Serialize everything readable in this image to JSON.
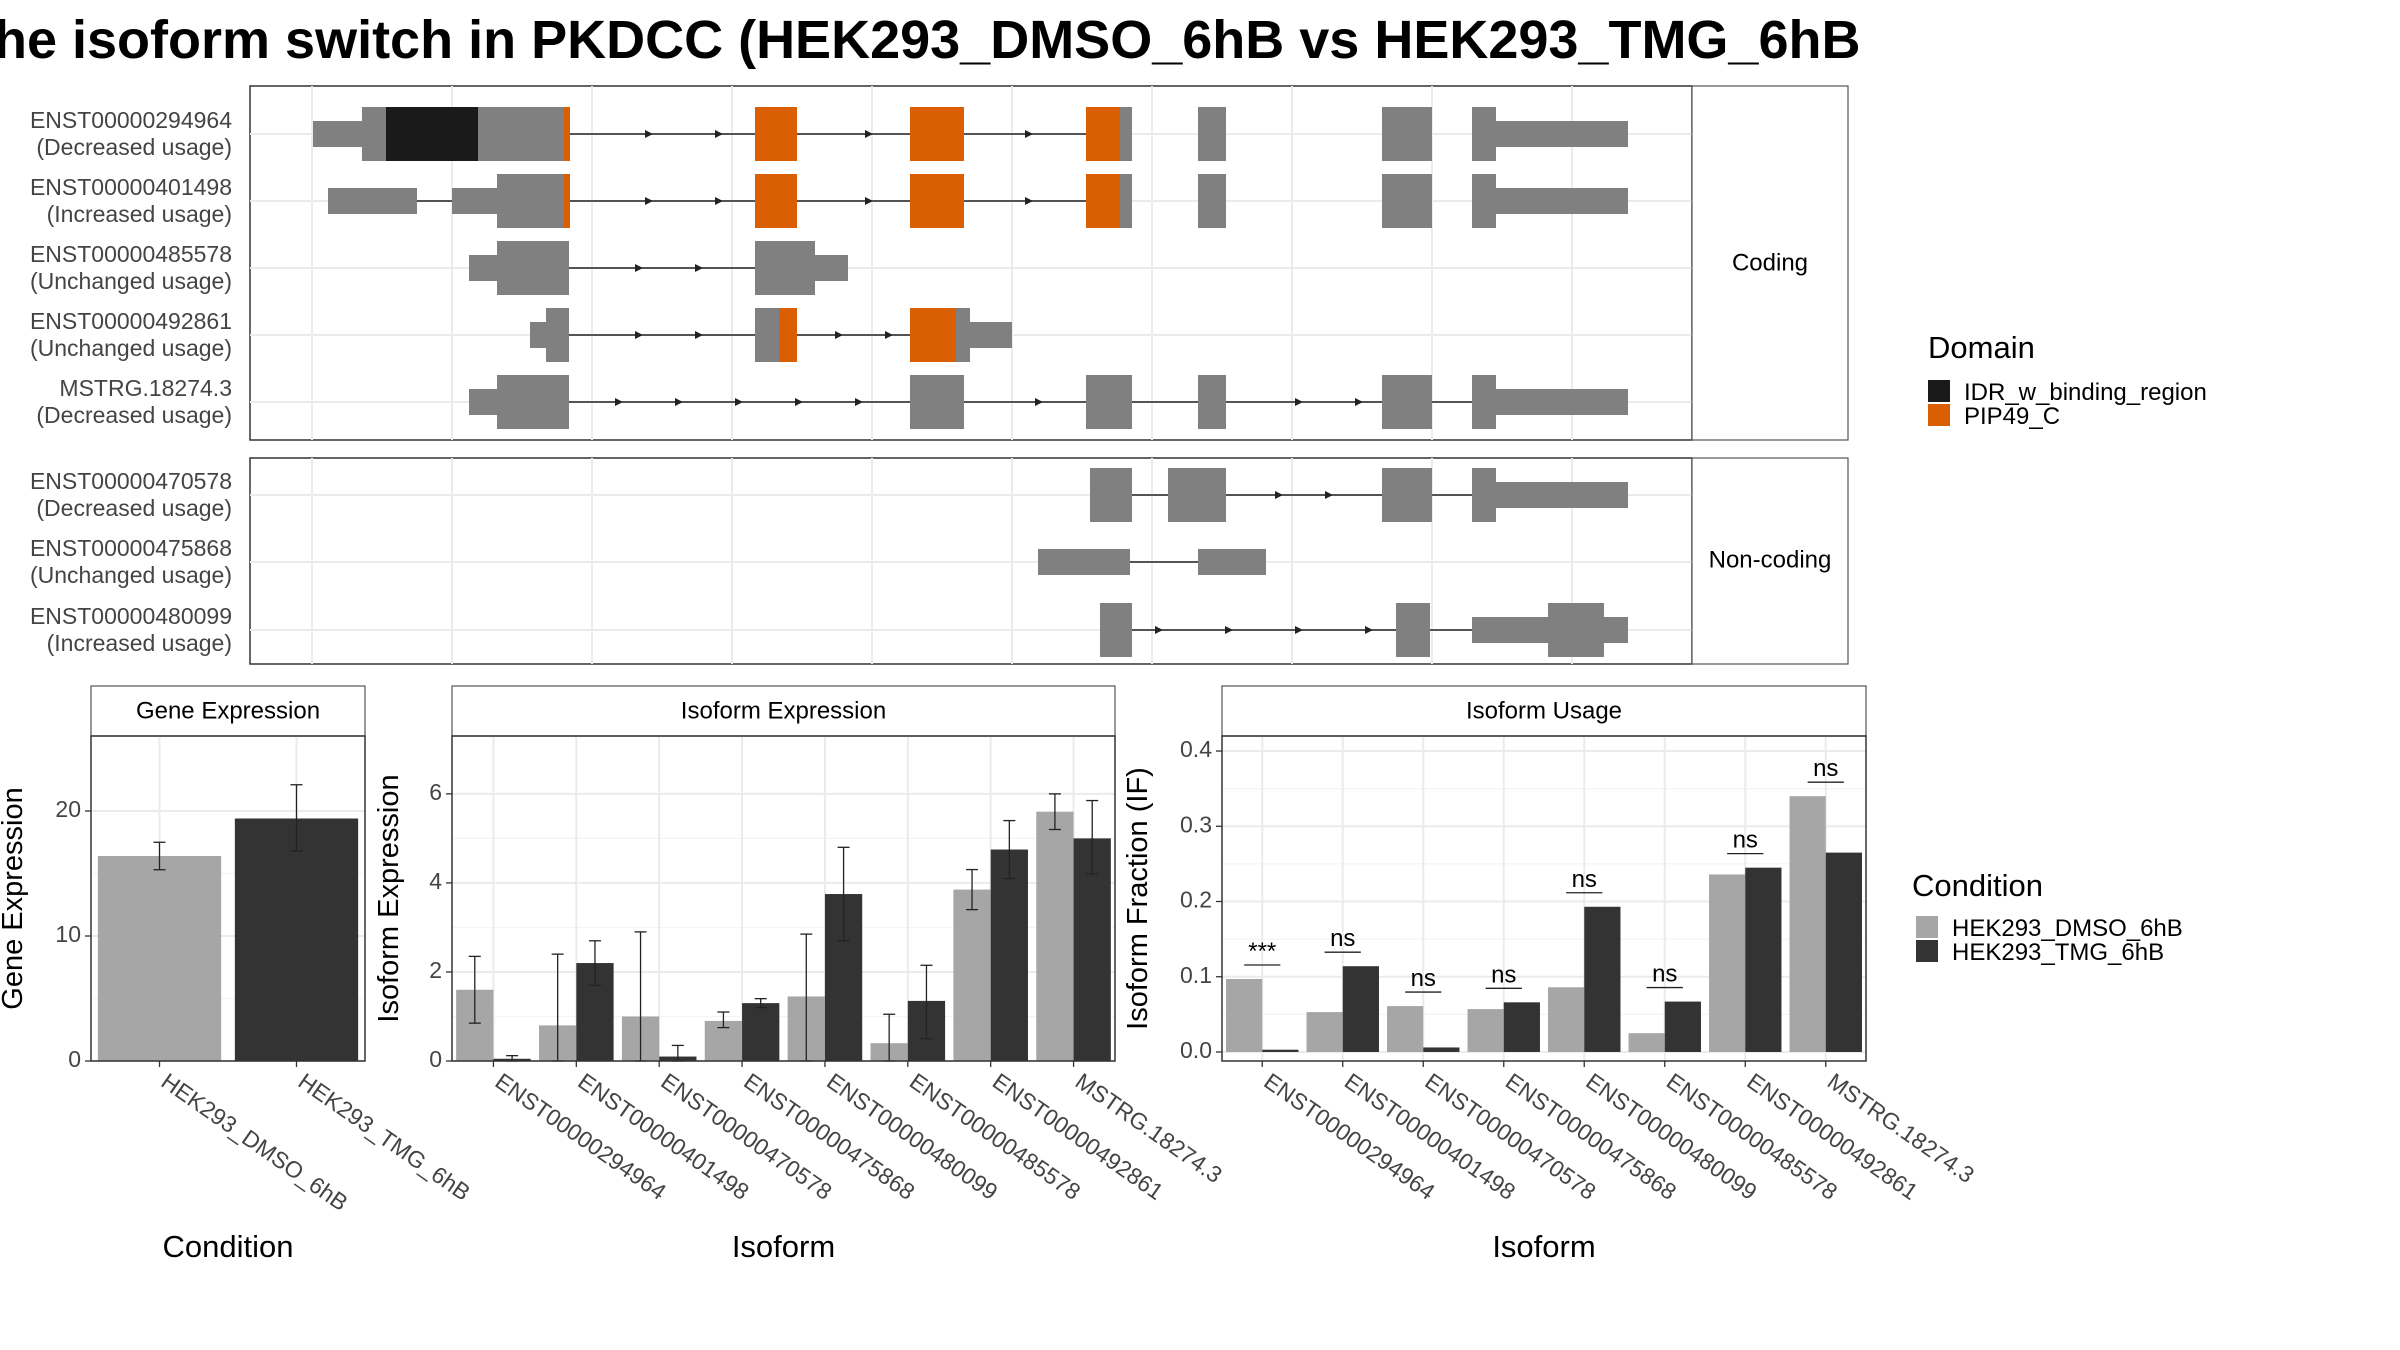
{
  "title": "he isoform switch in PKDCC (HEK293_DMSO_6hB vs HEK293_TMG_6hB",
  "colors": {
    "gene_model": "#808080",
    "IDR_w_binding_region": "#1a1a1a",
    "PIP49_C": "#d95f02",
    "DMSO": "#a6a6a6",
    "TMG": "#333333"
  },
  "legends": {
    "domain": {
      "title": "Domain",
      "items": [
        {
          "label": "IDR_w_binding_region",
          "color": "#1a1a1a"
        },
        {
          "label": "PIP49_C",
          "color": "#d95f02"
        }
      ]
    },
    "condition": {
      "title": "Condition",
      "items": [
        {
          "label": "HEK293_DMSO_6hB",
          "color": "#a6a6a6"
        },
        {
          "label": "HEK293_TMG_6hB",
          "color": "#333333"
        }
      ]
    }
  },
  "structure": {
    "coding_strip": "Coding",
    "noncoding_strip": "Non-coding",
    "coding": [
      {
        "id": "ENST00000294964",
        "usage": "(Decreased usage)"
      },
      {
        "id": "ENST00000401498",
        "usage": "(Increased usage)"
      },
      {
        "id": "ENST00000485578",
        "usage": "(Unchanged usage)"
      },
      {
        "id": "ENST00000492861",
        "usage": "(Unchanged usage)"
      },
      {
        "id": "MSTRG.18274.3",
        "usage": "(Decreased usage)"
      }
    ],
    "noncoding": [
      {
        "id": "ENST00000470578",
        "usage": "(Decreased usage)"
      },
      {
        "id": "ENST00000475868",
        "usage": "(Unchanged usage)"
      },
      {
        "id": "ENST00000480099",
        "usage": "(Increased usage)"
      }
    ]
  },
  "chart_data": [
    {
      "type": "bar",
      "title": "Gene Expression",
      "xlabel": "Condition",
      "ylabel": "Gene Expression",
      "categories": [
        "HEK293_DMSO_6hB",
        "HEK293_TMG_6hB"
      ],
      "values": [
        16.4,
        19.4
      ],
      "errors": [
        [
          15.3,
          17.5
        ],
        [
          16.8,
          22.1
        ]
      ],
      "ylim": [
        0,
        26
      ],
      "yticks": [
        0,
        10,
        20
      ],
      "grid": true
    },
    {
      "type": "bar",
      "title": "Isoform Expression",
      "xlabel": "Isoform",
      "ylabel": "Isoform Expression",
      "categories": [
        "ENST00000294964",
        "ENST00000401498",
        "ENST00000470578",
        "ENST00000475868",
        "ENST00000480099",
        "ENST00000485578",
        "ENST00000492861",
        "MSTRG.18274.3"
      ],
      "series": [
        {
          "name": "HEK293_DMSO_6hB",
          "values": [
            1.6,
            0.8,
            1.0,
            0.9,
            1.45,
            0.4,
            3.85,
            5.6
          ],
          "errors": [
            [
              0.85,
              2.35
            ],
            [
              0.0,
              2.4
            ],
            [
              0.0,
              2.9
            ],
            [
              0.75,
              1.1
            ],
            [
              0.0,
              2.85
            ],
            [
              0.0,
              1.05
            ],
            [
              3.4,
              4.3
            ],
            [
              5.2,
              6.0
            ]
          ]
        },
        {
          "name": "HEK293_TMG_6hB",
          "values": [
            0.05,
            2.2,
            0.1,
            1.3,
            3.75,
            1.35,
            4.75,
            5.0
          ],
          "errors": [
            [
              0.0,
              0.12
            ],
            [
              1.7,
              2.7
            ],
            [
              0.0,
              0.35
            ],
            [
              1.2,
              1.4
            ],
            [
              2.7,
              4.8
            ],
            [
              0.5,
              2.15
            ],
            [
              4.1,
              5.4
            ],
            [
              4.2,
              5.85
            ]
          ]
        }
      ],
      "ylim": [
        0,
        7.3
      ],
      "yticks": [
        0,
        2,
        4,
        6
      ],
      "grid": true
    },
    {
      "type": "bar",
      "title": "Isoform Usage",
      "xlabel": "Isoform",
      "ylabel": "Isoform Fraction (IF)",
      "categories": [
        "ENST00000294964",
        "ENST00000401498",
        "ENST00000470578",
        "ENST00000475868",
        "ENST00000480099",
        "ENST00000485578",
        "ENST00000492861",
        "MSTRG.18274.3"
      ],
      "series": [
        {
          "name": "HEK293_DMSO_6hB",
          "values": [
            0.097,
            0.053,
            0.061,
            0.057,
            0.086,
            0.025,
            0.236,
            0.34
          ]
        },
        {
          "name": "HEK293_TMG_6hB",
          "values": [
            0.003,
            0.114,
            0.006,
            0.066,
            0.193,
            0.067,
            0.245,
            0.265
          ]
        }
      ],
      "annotations": [
        "***",
        "ns",
        "ns",
        "ns",
        "ns",
        "ns",
        "ns",
        "ns"
      ],
      "ylim": [
        -0.012,
        0.42
      ],
      "yticks": [
        0.0,
        0.1,
        0.2,
        0.3,
        0.4
      ],
      "ytick_labels": [
        "0.0",
        "0.1",
        "0.2",
        "0.3",
        "0.4"
      ],
      "grid": true
    }
  ]
}
